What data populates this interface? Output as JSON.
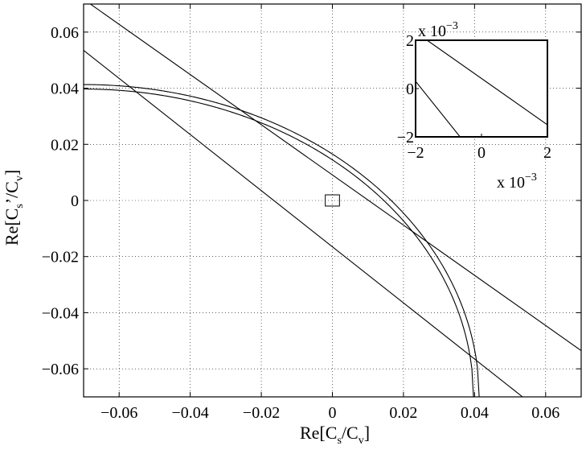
{
  "chart_data": [
    {
      "type": "line",
      "name": "main",
      "xlabel": {
        "base": "Re[C",
        "sub1": "s",
        "mid": "/C",
        "sub2": "v",
        "end": "]"
      },
      "ylabel": {
        "base": "Re[C",
        "sub1": "s",
        "prime": "’",
        "mid": "/C",
        "sub2": "v",
        "end": "]"
      },
      "xlim": [
        -0.07,
        0.07
      ],
      "ylim": [
        -0.07,
        0.07
      ],
      "xticks": [
        -0.06,
        -0.04,
        -0.02,
        0,
        0.02,
        0.04,
        0.06
      ],
      "yticks": [
        -0.06,
        -0.04,
        -0.02,
        0,
        0.02,
        0.04,
        0.06
      ],
      "xtick_labels": [
        "−0.06",
        "−0.04",
        "−0.02",
        "0",
        "0.02",
        "0.04",
        "0.06"
      ],
      "ytick_labels": [
        "−0.06",
        "−0.04",
        "−0.02",
        "0",
        "0.02",
        "0.04",
        "0.06"
      ],
      "grid": true,
      "series": [
        {
          "kind": "line",
          "x": [
            -0.07,
            0.07
          ],
          "y": [
            0.0717,
            -0.0535
          ],
          "color": "#000000"
        },
        {
          "kind": "line",
          "x": [
            -0.07,
            0.0535
          ],
          "y": [
            0.0535,
            -0.07
          ],
          "color": "#000000"
        },
        {
          "kind": "circle",
          "center": [
            -0.07,
            -0.07
          ],
          "radius": 0.1113,
          "x": [
            -0.07,
            0.0413
          ],
          "color": "#000000"
        },
        {
          "kind": "circle",
          "center": [
            -0.07,
            -0.07
          ],
          "radius": 0.1097,
          "x": [
            -0.07,
            0.0397
          ],
          "color": "#000000"
        }
      ],
      "annotations": [
        {
          "kind": "rectangle",
          "x": [
            -0.002,
            0.002
          ],
          "y": [
            -0.002,
            0.002
          ],
          "color": "#000000"
        }
      ]
    },
    {
      "type": "line",
      "name": "inset",
      "xlim": [
        -2,
        2
      ],
      "ylim": [
        -2,
        2
      ],
      "xticks": [
        -2,
        0,
        2
      ],
      "yticks": [
        -2,
        0,
        2
      ],
      "xtick_labels": [
        "−2",
        "0",
        "2"
      ],
      "ytick_labels": [
        "−2",
        "0",
        "2"
      ],
      "x_scale_label": {
        "base": "x 10",
        "exp": "−3"
      },
      "y_scale_label": {
        "base": "x 10",
        "exp": "−3"
      },
      "grid": false,
      "series": [
        {
          "kind": "line",
          "x": [
            -1.65,
            2.0
          ],
          "y": [
            2.0,
            -1.5
          ],
          "color": "#000000"
        },
        {
          "kind": "line",
          "x": [
            -2.0,
            -0.65
          ],
          "y": [
            0.3,
            -2.0
          ],
          "color": "#000000"
        }
      ]
    }
  ]
}
